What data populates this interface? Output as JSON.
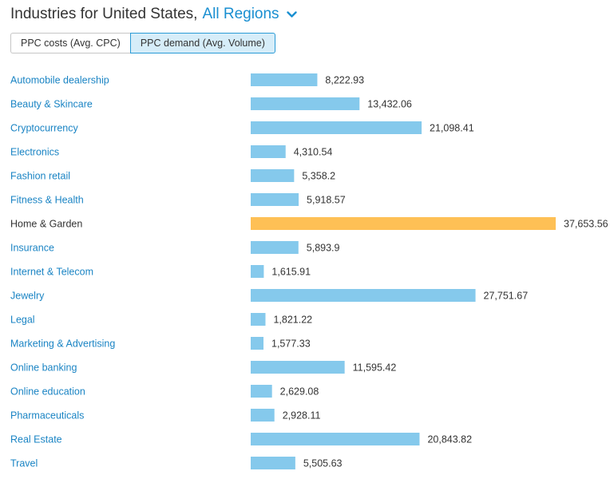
{
  "header": {
    "title_prefix": "Industries for United States,",
    "region_link": "All Regions"
  },
  "toggle": {
    "options": [
      {
        "label": "PPC costs (Avg. CPC)",
        "active": false
      },
      {
        "label": "PPC demand (Avg. Volume)",
        "active": true
      }
    ]
  },
  "colors": {
    "bar": "#85c9ec",
    "bar_highlight": "#fec055",
    "link": "#1a84c4",
    "toggle_active_bg": "#d6edf9"
  },
  "icons": {
    "region_dropdown": "chevron-down-icon"
  },
  "chart_data": {
    "type": "bar",
    "orientation": "horizontal",
    "categories": [
      "Automobile dealership",
      "Beauty & Skincare",
      "Cryptocurrency",
      "Electronics",
      "Fashion retail",
      "Fitness & Health",
      "Home & Garden",
      "Insurance",
      "Internet & Telecom",
      "Jewelry",
      "Legal",
      "Marketing & Advertising",
      "Online banking",
      "Online education",
      "Pharmaceuticals",
      "Real Estate",
      "Travel"
    ],
    "values": [
      8222.93,
      13432.06,
      21098.41,
      4310.54,
      5358.2,
      5918.57,
      37653.56,
      5893.9,
      1615.91,
      27751.67,
      1821.22,
      1577.33,
      11595.42,
      2629.08,
      2928.11,
      20843.82,
      5505.63
    ],
    "value_labels": [
      "8,222.93",
      "13,432.06",
      "21,098.41",
      "4,310.54",
      "5,358.2",
      "5,918.57",
      "37,653.56",
      "5,893.9",
      "1,615.91",
      "27,751.67",
      "1,821.22",
      "1,577.33",
      "11,595.42",
      "2,629.08",
      "2,928.11",
      "20,843.82",
      "5,505.63"
    ],
    "highlighted_category": "Home & Garden",
    "xlim": [
      0,
      37653.56
    ],
    "grid": false,
    "legend": "none"
  }
}
